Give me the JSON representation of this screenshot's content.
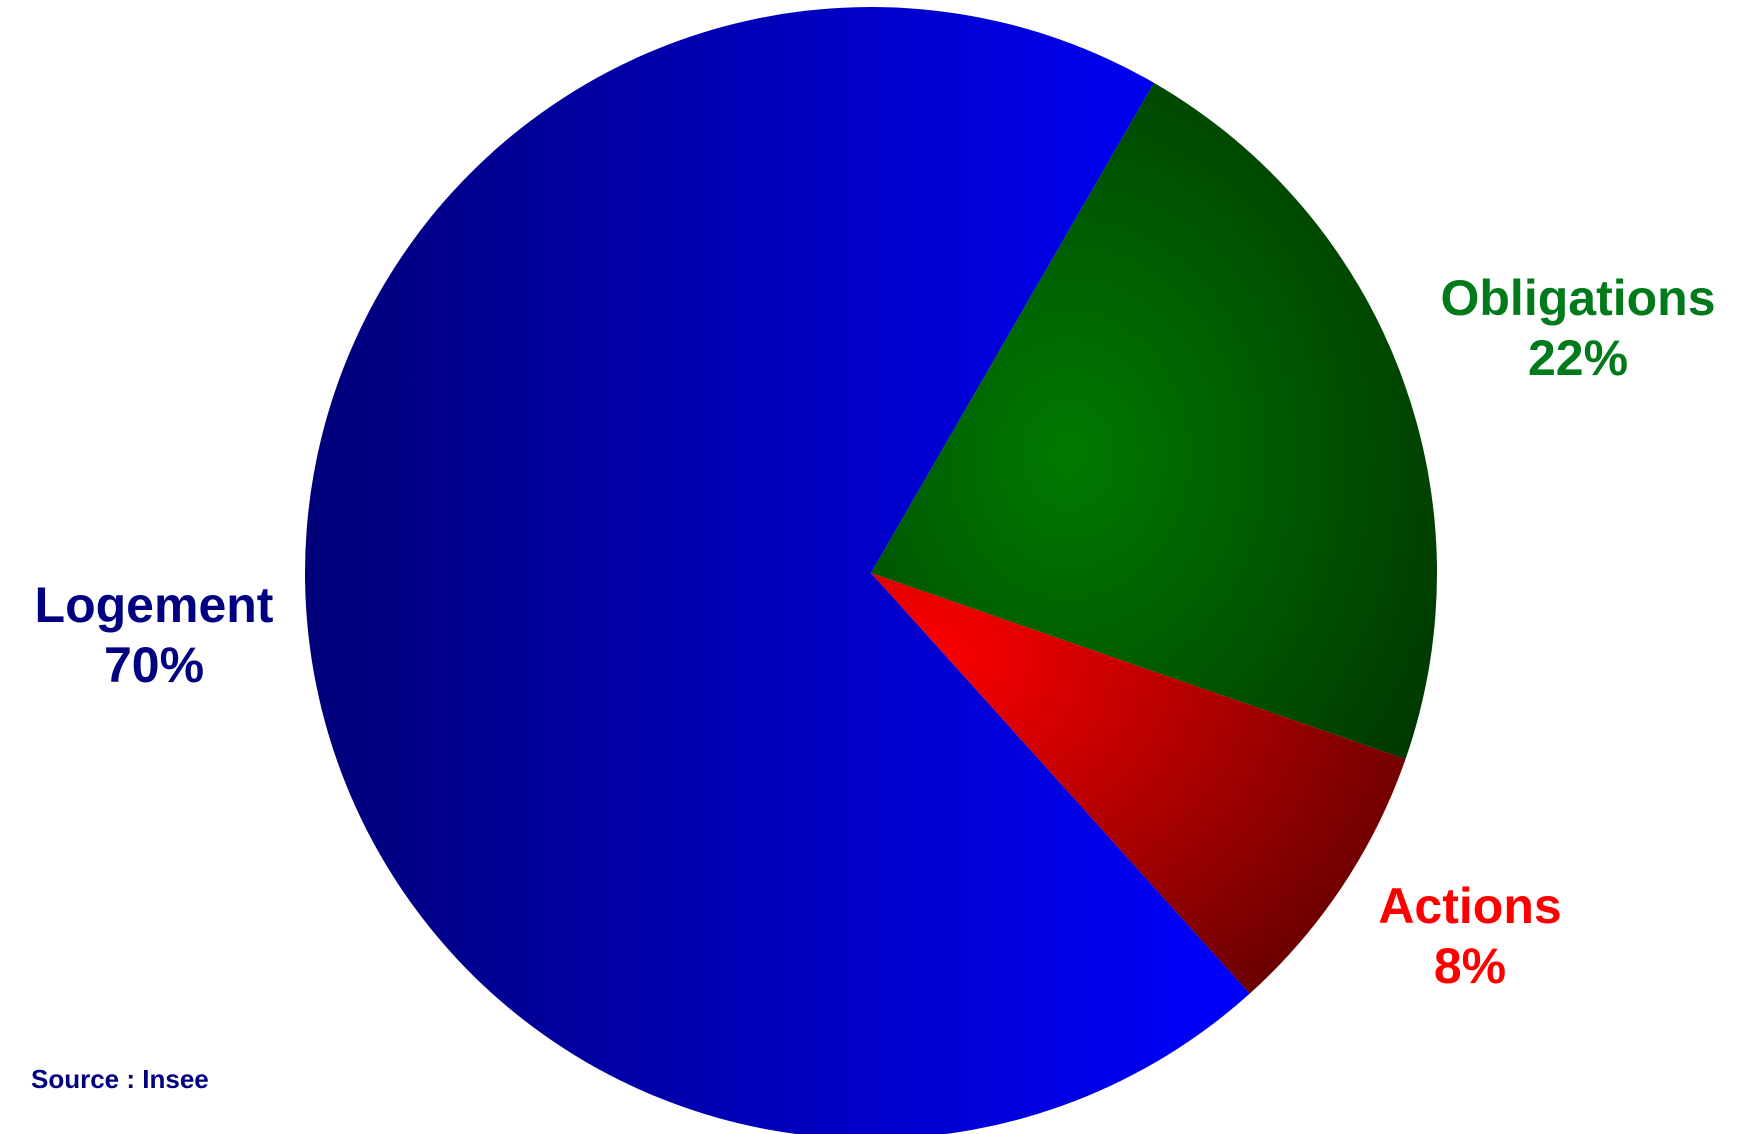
{
  "chart_data": {
    "type": "pie",
    "title": "",
    "slices": [
      {
        "label": "Obligations",
        "value": 22,
        "display": "22%",
        "color": "#007000",
        "dark": "#003a00",
        "text_color": "#007a1a"
      },
      {
        "label": "Actions",
        "value": 8,
        "display": "8%",
        "color": "#ff0000",
        "dark": "#700000",
        "text_color": "#ff0000"
      },
      {
        "label": "Logement",
        "value": 70,
        "display": "70%",
        "color": "#0000ff",
        "dark": "#000080",
        "text_color": "#000080"
      }
    ],
    "source": "Source : Insee",
    "source_color": "#000080"
  }
}
